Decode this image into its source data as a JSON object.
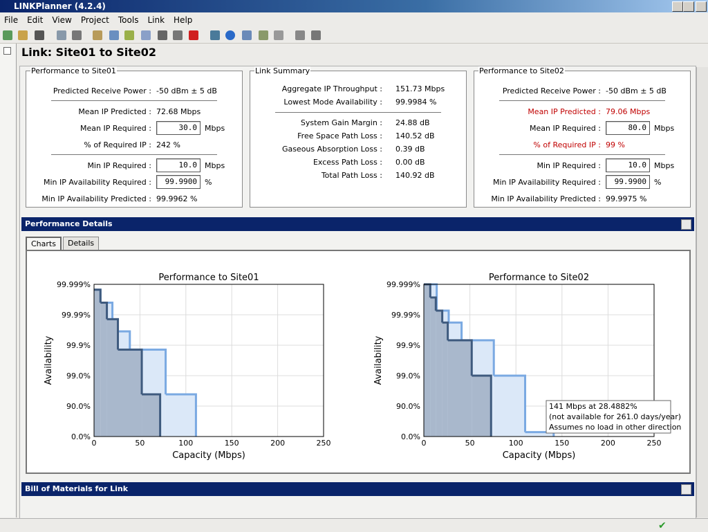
{
  "window_title": "LINKPlanner (4.2.4)",
  "menu": [
    "File",
    "Edit",
    "View",
    "Project",
    "Tools",
    "Link",
    "Help"
  ],
  "link_title": "Link: Site01 to Site02",
  "panels": [
    {
      "title": "Performance to Site01",
      "groups": [
        [
          {
            "label": "Predicted Receive Power :",
            "value": "-50 dBm ± 5 dB"
          }
        ],
        [
          {
            "label": "Mean IP Predicted :",
            "value": "72.68 Mbps"
          },
          {
            "label": "Mean IP Required :",
            "value": "30.0",
            "unit": "Mbps",
            "input": true
          },
          {
            "label": "% of Required IP :",
            "value": "242 %"
          }
        ],
        [
          {
            "label": "Min IP Required :",
            "value": "10.0",
            "unit": "Mbps",
            "input": true
          },
          {
            "label": "Min IP Availability Required :",
            "value": "99.9900",
            "unit": "%",
            "input": true
          },
          {
            "label": "Min IP Availability Predicted :",
            "value": "99.9962 %"
          }
        ]
      ]
    },
    {
      "title": "Link Summary",
      "groups": [
        [
          {
            "label": "Aggregate IP Throughput :",
            "value": "151.73 Mbps"
          },
          {
            "label": "Lowest Mode Availability :",
            "value": "99.9984 %"
          }
        ],
        [
          {
            "label": "System Gain Margin :",
            "value": "24.88 dB"
          },
          {
            "label": "Free Space Path Loss :",
            "value": "140.52 dB"
          },
          {
            "label": "Gaseous Absorption Loss :",
            "value": "0.39 dB"
          },
          {
            "label": "Excess Path Loss :",
            "value": "0.00 dB"
          },
          {
            "label": "Total Path Loss :",
            "value": "140.92 dB"
          }
        ]
      ]
    },
    {
      "title": "Performance to Site02",
      "groups": [
        [
          {
            "label": "Predicted Receive Power :",
            "value": "-50 dBm ± 5 dB"
          }
        ],
        [
          {
            "label": "Mean IP Predicted :",
            "value": "79.06 Mbps",
            "alert": true
          },
          {
            "label": "Mean IP Required :",
            "value": "80.0",
            "unit": "Mbps",
            "input": true
          },
          {
            "label": "% of Required IP :",
            "value": "99 %",
            "alert": true
          }
        ],
        [
          {
            "label": "Min IP Required :",
            "value": "10.0",
            "unit": "Mbps",
            "input": true
          },
          {
            "label": "Min IP Availability Required :",
            "value": "99.9900",
            "unit": "%",
            "input": true
          },
          {
            "label": "Min IP Availability Predicted :",
            "value": "99.9975 %"
          }
        ]
      ]
    }
  ],
  "details_title": "Performance Details",
  "tabs": [
    "Charts",
    "Details"
  ],
  "bom_title": "Bill of Materials for Link",
  "chart_data": [
    {
      "type": "step",
      "title": "Performance to Site01",
      "x_label": "Capacity (Mbps)",
      "y_label": "Availability",
      "xlim": [
        0,
        250
      ],
      "xticks": [
        0,
        50,
        100,
        150,
        200,
        250
      ],
      "ylim": [
        0,
        99.999
      ],
      "yscale": "unavailability-log",
      "yticks": [
        {
          "value": 99.999,
          "label": "99.999%"
        },
        {
          "value": 99.99,
          "label": "99.99%"
        },
        {
          "value": 99.9,
          "label": "99.9%"
        },
        {
          "value": 99,
          "label": "99.0%"
        },
        {
          "value": 90,
          "label": "90.0%"
        },
        {
          "value": 0,
          "label": "0.0%"
        }
      ],
      "grid": true,
      "series": [
        {
          "color": "#7aa9e2",
          "fill": "#dbe8f8",
          "x": [
            0,
            7,
            20,
            26,
            39,
            78,
            111
          ],
          "values": [
            99.9985,
            99.996,
            99.986,
            99.965,
            99.86,
            95.9,
            0
          ]
        },
        {
          "color": "#3e5a7e",
          "fill": "#a9b8cc",
          "x": [
            0,
            7,
            14,
            26,
            52,
            72
          ],
          "values": [
            99.9985,
            99.996,
            99.986,
            99.86,
            95.9,
            0
          ]
        }
      ]
    },
    {
      "type": "step",
      "title": "Performance to Site02",
      "x_label": "Capacity (Mbps)",
      "y_label": "Availability",
      "xlim": [
        0,
        250
      ],
      "xticks": [
        0,
        50,
        100,
        150,
        200,
        250
      ],
      "ylim": [
        0,
        99.999
      ],
      "yscale": "unavailability-log",
      "yticks": [
        {
          "value": 99.999,
          "label": "99.999%"
        },
        {
          "value": 99.99,
          "label": "99.99%"
        },
        {
          "value": 99.9,
          "label": "99.9%"
        },
        {
          "value": 99,
          "label": "99.0%"
        },
        {
          "value": 90,
          "label": "90.0%"
        },
        {
          "value": 0,
          "label": "0.0%"
        }
      ],
      "grid": true,
      "series": [
        {
          "color": "#7aa9e2",
          "fill": "#dbe8f8",
          "x": [
            0,
            14,
            27,
            41,
            76,
            110,
            141
          ],
          "values": [
            99.999,
            99.9927,
            99.982,
            99.931,
            99.0,
            28.4882,
            0
          ]
        },
        {
          "color": "#3e5a7e",
          "fill": "#a9b8cc",
          "x": [
            0,
            7,
            13,
            20,
            26,
            52,
            73
          ],
          "values": [
            99.999,
            99.9973,
            99.9927,
            99.982,
            99.931,
            99.0,
            0
          ]
        }
      ],
      "annotation": [
        "141 Mbps at 28.4882%",
        "(not available for 261.0 days/year)",
        "Assumes no load in other direction"
      ]
    }
  ]
}
